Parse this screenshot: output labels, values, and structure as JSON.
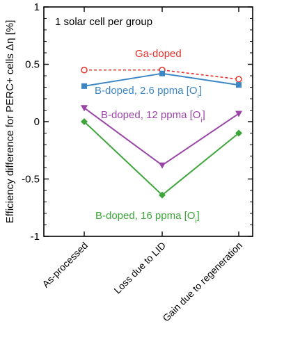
{
  "chart_data": {
    "type": "line",
    "categories": [
      "As-processed",
      "Loss due to LID",
      "Gain due to regeneration"
    ],
    "ylabel": "Efficiency difference for PERC+ cells Δη [%]",
    "ylim": [
      -1,
      1
    ],
    "yticks": [
      "1",
      "0.5",
      "0",
      "-0.5",
      "-1"
    ],
    "grid": false,
    "note": "1 solar cell per group",
    "series": [
      {
        "name": "Ga-doped",
        "values": [
          0.45,
          0.45,
          0.37
        ],
        "color": "#e8302a",
        "marker": "open-circle",
        "dash": true
      },
      {
        "name": "B-doped, 2.6 ppma [Oi]",
        "values": [
          0.31,
          0.42,
          0.32
        ],
        "color": "#3d86c6",
        "marker": "square",
        "dash": false
      },
      {
        "name": "B-doped, 12  ppma [Oi]",
        "values": [
          0.12,
          -0.38,
          0.07
        ],
        "color": "#9b44a8",
        "marker": "triangle-down",
        "dash": false
      },
      {
        "name": "B-doped, 16 ppma [Oi]",
        "values": [
          0.0,
          -0.64,
          -0.1
        ],
        "color": "#3da53a",
        "marker": "diamond",
        "dash": false
      }
    ],
    "annotations": [
      {
        "text": "Ga-doped",
        "series": 0
      },
      {
        "text": "B-doped, 2.6 ppma [O",
        "sub": "i",
        "close": "]",
        "series": 1
      },
      {
        "text": "B-doped, 12  ppma [O",
        "sub": "i",
        "close": "]",
        "series": 2
      },
      {
        "text": "B-doped, 16 ppma [O",
        "sub": "i",
        "close": "]",
        "series": 3
      }
    ]
  }
}
